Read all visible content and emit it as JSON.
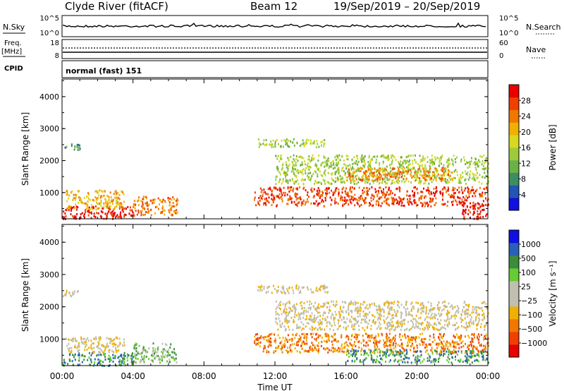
{
  "header": {
    "station": "Clyde River (fitACF)",
    "beam": "Beam 12",
    "dates": "19/Sep/2019 – 20/Sep/2019"
  },
  "panels": {
    "nsky": {
      "left_label": "N.Sky",
      "left_ticks": [
        "10^5",
        "10^0"
      ],
      "right_ticks": [
        "10^5",
        "10^0"
      ],
      "right_label": "N.Search"
    },
    "freq": {
      "left_label_1": "Freq.",
      "left_label_2": "[MHz]",
      "left_ticks": [
        "18",
        "8"
      ],
      "right_ticks": [
        "60",
        "0"
      ],
      "right_label": "Nave"
    },
    "cpid": {
      "label": "CPID",
      "text": "normal (fast) 151"
    }
  },
  "chart_data": [
    {
      "type": "heatmap",
      "quantity": "Power",
      "colorbar_label": "Power [dB]",
      "colorbar_ticks": [
        "28",
        "24",
        "20",
        "16",
        "12",
        "8",
        "4"
      ],
      "colors": [
        "#1010e0",
        "#2454b4",
        "#3c8c64",
        "#6cb048",
        "#9ccc3c",
        "#d8d820",
        "#f0b000",
        "#f07800",
        "#f04000",
        "#e80000"
      ],
      "ylabel": "Slant Range [km]",
      "yticks": [
        1000,
        2000,
        3000,
        4000
      ],
      "ylim": [
        180,
        4550
      ],
      "xlim": [
        0,
        24
      ],
      "bands": [
        {
          "t0": 0.0,
          "t1": 4.0,
          "r0": 200,
          "r1": 600,
          "level": 9
        },
        {
          "t0": 0.2,
          "t1": 3.5,
          "r0": 500,
          "r1": 1100,
          "level": 6
        },
        {
          "t0": 4.0,
          "t1": 6.5,
          "r0": 300,
          "r1": 900,
          "level": 7
        },
        {
          "t0": 0.0,
          "t1": 1.0,
          "r0": 2350,
          "r1": 2550,
          "level": 2
        },
        {
          "t0": 10.8,
          "t1": 24.0,
          "r0": 600,
          "r1": 1200,
          "level": 8
        },
        {
          "t0": 11.0,
          "t1": 15.0,
          "r0": 2450,
          "r1": 2700,
          "level": 4
        },
        {
          "t0": 12.0,
          "t1": 24.0,
          "r0": 1300,
          "r1": 2200,
          "level": 4
        },
        {
          "t0": 16.0,
          "t1": 22.0,
          "r0": 1400,
          "r1": 1800,
          "level": 7
        },
        {
          "t0": 22.5,
          "t1": 24.0,
          "r0": 200,
          "r1": 700,
          "level": 9
        }
      ]
    },
    {
      "type": "heatmap",
      "quantity": "Velocity",
      "colorbar_label": "Velocity [m s⁻¹]",
      "colorbar_ticks": [
        "1000",
        "500",
        "100",
        "25",
        "−25",
        "−100",
        "−500",
        "−1000"
      ],
      "colors": [
        "#e80000",
        "#f04000",
        "#f07800",
        "#f0b000",
        "#c0c0b0",
        "#c0c0b0",
        "#66cc33",
        "#3c8c3c",
        "#2860b8",
        "#1010e0"
      ],
      "ylabel": "Slant Range [km]",
      "yticks": [
        1000,
        2000,
        3000,
        4000
      ],
      "ylim": [
        180,
        4550
      ],
      "xlim": [
        0,
        24
      ],
      "xticks": [
        "00:00",
        "04:00",
        "08:00",
        "12:00",
        "16:00",
        "20:00",
        "00:00"
      ],
      "xlabel": "Time UT",
      "bands": [
        {
          "t0": 0.0,
          "t1": 4.0,
          "r0": 200,
          "r1": 600,
          "level": 7
        },
        {
          "t0": 0.2,
          "t1": 3.5,
          "r0": 600,
          "r1": 1100,
          "level": 4
        },
        {
          "t0": 4.0,
          "t1": 6.5,
          "r0": 300,
          "r1": 900,
          "level": 6
        },
        {
          "t0": 0.0,
          "t1": 1.0,
          "r0": 2350,
          "r1": 2550,
          "level": 4
        },
        {
          "t0": 10.8,
          "t1": 24.0,
          "r0": 600,
          "r1": 1200,
          "level": 2
        },
        {
          "t0": 11.0,
          "t1": 15.0,
          "r0": 2450,
          "r1": 2700,
          "level": 4
        },
        {
          "t0": 12.0,
          "t1": 24.0,
          "r0": 1300,
          "r1": 2200,
          "level": 4
        },
        {
          "t0": 16.0,
          "t1": 24.0,
          "r0": 300,
          "r1": 700,
          "level": 7
        }
      ]
    }
  ]
}
